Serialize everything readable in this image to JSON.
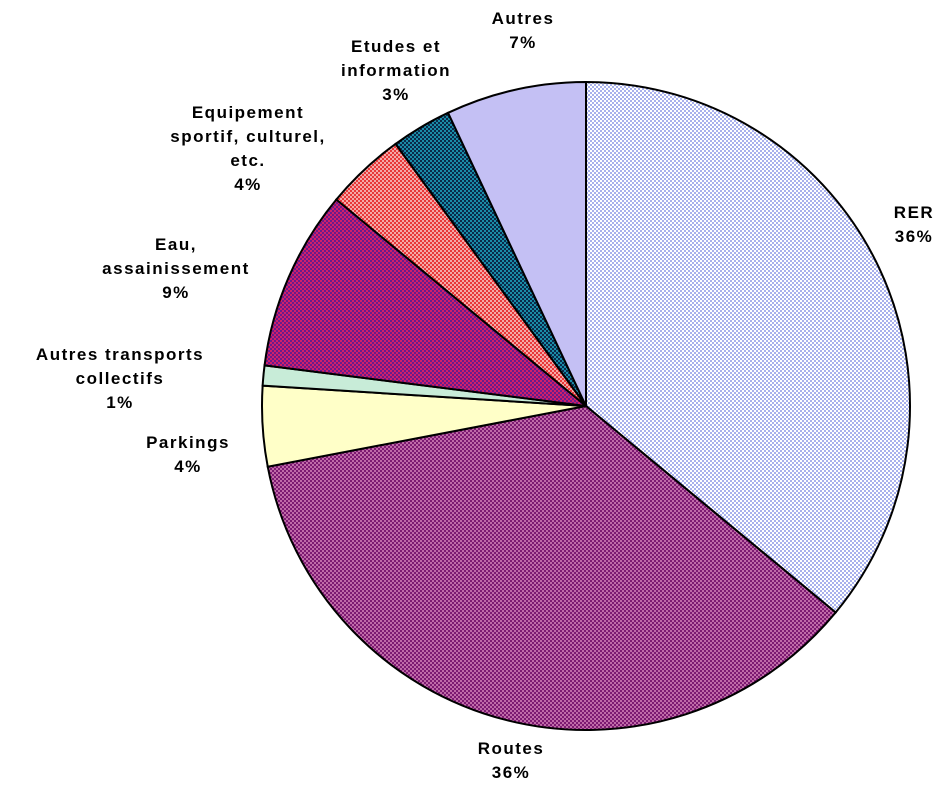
{
  "chart_data": {
    "type": "pie",
    "title": "",
    "slices": [
      {
        "label": "RER",
        "value": 36,
        "display": "36%",
        "color": "#a8b0ec",
        "pattern": "fine-check",
        "pattern_color": "#ffffff"
      },
      {
        "label": "Routes",
        "value": 36,
        "display": "36%",
        "color": "#7d1a72",
        "pattern": "fine-check",
        "pattern_color": "#c06aa8"
      },
      {
        "label": "Parkings",
        "value": 4,
        "display": "4%",
        "color": "#ffffc8"
      },
      {
        "label": "Autres transports collectifs",
        "value": 1,
        "display": "1%",
        "color": "#c8ecd8"
      },
      {
        "label": "Eau, assainissement",
        "value": 9,
        "display": "9%",
        "color": "#6a1a8c",
        "pattern": "fine-check",
        "pattern_color": "#d0206a"
      },
      {
        "label": "Equipement sportif, culturel, etc.",
        "value": 4,
        "display": "4%",
        "color": "#f4a8a8",
        "pattern": "fine-check",
        "pattern_color": "#e83838"
      },
      {
        "label": "Etudes et information",
        "value": 3,
        "display": "3%",
        "color": "#1a8ca8",
        "pattern": "fine-check",
        "pattern_color": "#0a2a4a"
      },
      {
        "label": "Autres",
        "value": 7,
        "display": "7%",
        "color": "#c4c0f4"
      }
    ],
    "labels_text": [
      {
        "slice": 0,
        "lines": [
          "RER",
          "36%"
        ]
      },
      {
        "slice": 1,
        "lines": [
          "Routes",
          "36%"
        ]
      },
      {
        "slice": 2,
        "lines": [
          "Parkings",
          "4%"
        ]
      },
      {
        "slice": 3,
        "lines": [
          "Autres transports",
          "collectifs",
          "1%"
        ]
      },
      {
        "slice": 4,
        "lines": [
          "Eau,",
          "assainissement",
          "9%"
        ]
      },
      {
        "slice": 5,
        "lines": [
          "Equipement",
          "sportif, culturel,",
          "etc.",
          "4%"
        ]
      },
      {
        "slice": 6,
        "lines": [
          "Etudes et",
          "information",
          "3%"
        ]
      },
      {
        "slice": 7,
        "lines": [
          "Autres",
          "7%"
        ]
      }
    ],
    "legend": "none"
  }
}
